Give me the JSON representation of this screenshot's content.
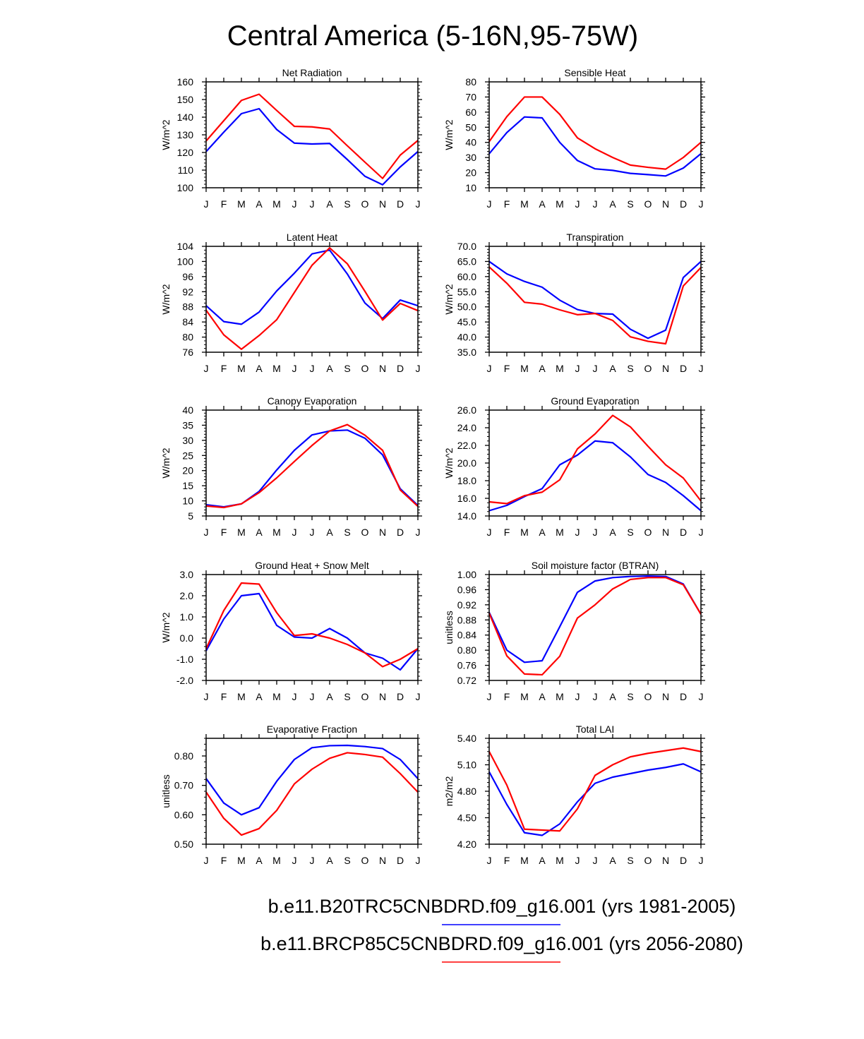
{
  "figure_title": "Central America (5-16N,95-75W)",
  "month_labels": [
    "J",
    "F",
    "M",
    "A",
    "M",
    "J",
    "J",
    "A",
    "S",
    "O",
    "N",
    "D",
    "J"
  ],
  "legend": [
    {
      "label": "b.e11.B20TRC5CNBDRD.f09_g16.001 (yrs 1981-2005)",
      "color": "#0000ff"
    },
    {
      "label": "b.e11.BRCP85C5CNBDRD.f09_g16.001 (yrs 2056-2080)",
      "color": "#ff0000"
    }
  ],
  "colors": {
    "historical": "#0000ff",
    "future": "#ff0000",
    "axis": "#000000"
  },
  "chart_data": [
    {
      "type": "line",
      "title": "Net Radiation",
      "ylabel": "W/m^2",
      "ylim": [
        100,
        160
      ],
      "yticks": [
        "100",
        "110",
        "120",
        "130",
        "140",
        "150",
        "160"
      ],
      "ytick_values": [
        100,
        110,
        120,
        130,
        140,
        150,
        160
      ],
      "minor_step": 2,
      "series": [
        {
          "name": "b.e11.B20TRC5CNBDRD.f09_g16.001 (yrs 1981-2005)",
          "color": "#0000ff",
          "values": [
            120.5,
            131.5,
            142.0,
            144.8,
            133.0,
            125.3,
            124.8,
            125.1,
            116.0,
            106.5,
            101.7,
            111.8,
            120.5
          ]
        },
        {
          "name": "b.e11.BRCP85C5CNBDRD.f09_g16.001 (yrs 2056-2080)",
          "color": "#ff0000",
          "values": [
            126.5,
            138.0,
            149.5,
            153.0,
            143.8,
            134.8,
            134.5,
            133.3,
            123.8,
            114.5,
            105.3,
            118.5,
            126.8
          ]
        }
      ]
    },
    {
      "type": "line",
      "title": "Sensible Heat",
      "ylabel": "W/m^2",
      "ylim": [
        10,
        80
      ],
      "yticks": [
        "10",
        "20",
        "30",
        "40",
        "50",
        "60",
        "70",
        "80"
      ],
      "ytick_values": [
        10,
        20,
        30,
        40,
        50,
        60,
        70,
        80
      ],
      "minor_step": 2,
      "series": [
        {
          "name": "b.e11.B20TRC5CNBDRD.f09_g16.001 (yrs 1981-2005)",
          "color": "#0000ff",
          "values": [
            32.5,
            46.5,
            56.8,
            56.2,
            40.0,
            28.0,
            22.5,
            21.5,
            19.5,
            18.7,
            17.8,
            23.0,
            32.5
          ]
        },
        {
          "name": "b.e11.BRCP85C5CNBDRD.f09_g16.001 (yrs 2056-2080)",
          "color": "#ff0000",
          "values": [
            40.5,
            57.0,
            70.0,
            70.0,
            58.5,
            43.0,
            35.8,
            30.0,
            25.0,
            23.5,
            22.3,
            30.0,
            40.0
          ]
        }
      ]
    },
    {
      "type": "line",
      "title": "Latent Heat",
      "ylabel": "W/m^2",
      "ylim": [
        76,
        104
      ],
      "yticks": [
        "76",
        "80",
        "84",
        "88",
        "92",
        "96",
        "100",
        "104"
      ],
      "ytick_values": [
        76,
        80,
        84,
        88,
        92,
        96,
        100,
        104
      ],
      "minor_step": 1,
      "series": [
        {
          "name": "b.e11.B20TRC5CNBDRD.f09_g16.001 (yrs 1981-2005)",
          "color": "#0000ff",
          "values": [
            88.3,
            84.1,
            83.4,
            86.6,
            92.2,
            96.9,
            102.0,
            103.0,
            96.7,
            89.0,
            84.9,
            89.8,
            88.3
          ]
        },
        {
          "name": "b.e11.BRCP85C5CNBDRD.f09_g16.001 (yrs 2056-2080)",
          "color": "#ff0000",
          "values": [
            87.1,
            80.6,
            76.8,
            80.4,
            84.6,
            91.8,
            99.0,
            103.6,
            99.4,
            92.1,
            84.5,
            88.9,
            87.0
          ]
        }
      ]
    },
    {
      "type": "line",
      "title": "Transpiration",
      "ylabel": "W/m^2",
      "ylim": [
        35,
        70
      ],
      "yticks": [
        "35.0",
        "40.0",
        "45.0",
        "50.0",
        "55.0",
        "60.0",
        "65.0",
        "70.0"
      ],
      "ytick_values": [
        35,
        40,
        45,
        50,
        55,
        60,
        65,
        70
      ],
      "minor_step": 1,
      "series": [
        {
          "name": "b.e11.B20TRC5CNBDRD.f09_g16.001 (yrs 1981-2005)",
          "color": "#0000ff",
          "values": [
            65.0,
            60.9,
            58.4,
            56.5,
            52.2,
            49.1,
            47.8,
            47.6,
            42.6,
            39.6,
            42.3,
            59.7,
            65.0
          ]
        },
        {
          "name": "b.e11.BRCP85C5CNBDRD.f09_g16.001 (yrs 2056-2080)",
          "color": "#ff0000",
          "values": [
            63.2,
            57.8,
            51.5,
            50.9,
            49.0,
            47.4,
            47.8,
            45.5,
            40.1,
            38.6,
            37.8,
            56.9,
            63.0
          ]
        }
      ]
    },
    {
      "type": "line",
      "title": "Canopy Evaporation",
      "ylabel": "W/m^2",
      "ylim": [
        5,
        40
      ],
      "yticks": [
        "5",
        "10",
        "15",
        "20",
        "25",
        "30",
        "35",
        "40"
      ],
      "ytick_values": [
        5,
        10,
        15,
        20,
        25,
        30,
        35,
        40
      ],
      "minor_step": 1,
      "series": [
        {
          "name": "b.e11.B20TRC5CNBDRD.f09_g16.001 (yrs 1981-2005)",
          "color": "#0000ff",
          "values": [
            8.7,
            8.0,
            9.0,
            13.1,
            20.2,
            26.7,
            31.8,
            33.1,
            33.4,
            30.7,
            25.2,
            14.0,
            8.5
          ]
        },
        {
          "name": "b.e11.BRCP85C5CNBDRD.f09_g16.001 (yrs 2056-2080)",
          "color": "#ff0000",
          "values": [
            8.3,
            7.8,
            9.0,
            12.7,
            17.6,
            23.0,
            28.3,
            33.1,
            35.2,
            31.7,
            26.7,
            13.6,
            8.2
          ]
        }
      ]
    },
    {
      "type": "line",
      "title": "Ground Evaporation",
      "ylabel": "W/m^2",
      "ylim": [
        14,
        26
      ],
      "yticks": [
        "14.0",
        "16.0",
        "18.0",
        "20.0",
        "22.0",
        "24.0",
        "26.0"
      ],
      "ytick_values": [
        14,
        16,
        18,
        20,
        22,
        24,
        26
      ],
      "minor_step": 0.5,
      "series": [
        {
          "name": "b.e11.B20TRC5CNBDRD.f09_g16.001 (yrs 1981-2005)",
          "color": "#0000ff",
          "values": [
            14.6,
            15.2,
            16.2,
            17.1,
            19.8,
            20.9,
            22.5,
            22.3,
            20.7,
            18.7,
            17.8,
            16.3,
            14.6
          ]
        },
        {
          "name": "b.e11.BRCP85C5CNBDRD.f09_g16.001 (yrs 2056-2080)",
          "color": "#ff0000",
          "values": [
            15.6,
            15.4,
            16.3,
            16.7,
            18.1,
            21.6,
            23.3,
            25.4,
            24.1,
            21.9,
            19.8,
            18.3,
            15.7
          ]
        }
      ]
    },
    {
      "type": "line",
      "title": "Ground Heat + Snow Melt",
      "ylabel": "W/m^2",
      "ylim": [
        -2,
        3
      ],
      "yticks": [
        "-2.0",
        "-1.0",
        "0.0",
        "1.0",
        "2.0",
        "3.0"
      ],
      "ytick_values": [
        -2,
        -1,
        0,
        1,
        2,
        3
      ],
      "minor_step": 0.2,
      "series": [
        {
          "name": "b.e11.B20TRC5CNBDRD.f09_g16.001 (yrs 1981-2005)",
          "color": "#0000ff",
          "values": [
            -0.6,
            0.9,
            2.0,
            2.1,
            0.6,
            0.05,
            0.0,
            0.45,
            0.0,
            -0.7,
            -0.95,
            -1.5,
            -0.5
          ]
        },
        {
          "name": "b.e11.BRCP85C5CNBDRD.f09_g16.001 (yrs 2056-2080)",
          "color": "#ff0000",
          "values": [
            -0.5,
            1.3,
            2.6,
            2.55,
            1.2,
            0.12,
            0.2,
            0.0,
            -0.3,
            -0.7,
            -1.35,
            -1.0,
            -0.5
          ]
        }
      ]
    },
    {
      "type": "line",
      "title": "Soil moisture factor (BTRAN)",
      "ylabel": "unitless",
      "ylim": [
        0.72,
        1.0
      ],
      "yticks": [
        "0.72",
        "0.76",
        "0.80",
        "0.84",
        "0.88",
        "0.92",
        "0.96",
        "1.00"
      ],
      "ytick_values": [
        0.72,
        0.76,
        0.8,
        0.84,
        0.88,
        0.92,
        0.96,
        1.0
      ],
      "minor_step": 0.01,
      "series": [
        {
          "name": "b.e11.B20TRC5CNBDRD.f09_g16.001 (yrs 1981-2005)",
          "color": "#0000ff",
          "values": [
            0.9,
            0.8,
            0.768,
            0.772,
            0.862,
            0.953,
            0.983,
            0.992,
            0.995,
            0.996,
            0.995,
            0.975,
            0.895
          ]
        },
        {
          "name": "b.e11.BRCP85C5CNBDRD.f09_g16.001 (yrs 2056-2080)",
          "color": "#ff0000",
          "values": [
            0.898,
            0.785,
            0.737,
            0.735,
            0.784,
            0.885,
            0.92,
            0.962,
            0.987,
            0.992,
            0.992,
            0.973,
            0.895
          ]
        }
      ]
    },
    {
      "type": "line",
      "title": "Evaporative Fraction",
      "ylabel": "unitless",
      "ylim": [
        0.5,
        0.86
      ],
      "yticks": [
        "0.50",
        "0.60",
        "0.70",
        "0.80"
      ],
      "ytick_values": [
        0.5,
        0.6,
        0.7,
        0.8
      ],
      "minor_step": 0.02,
      "series": [
        {
          "name": "b.e11.B20TRC5CNBDRD.f09_g16.001 (yrs 1981-2005)",
          "color": "#0000ff",
          "values": [
            0.723,
            0.64,
            0.6,
            0.624,
            0.714,
            0.788,
            0.828,
            0.835,
            0.836,
            0.832,
            0.825,
            0.788,
            0.723
          ]
        },
        {
          "name": "b.e11.BRCP85C5CNBDRD.f09_g16.001 (yrs 2056-2080)",
          "color": "#ff0000",
          "values": [
            0.677,
            0.588,
            0.531,
            0.553,
            0.615,
            0.705,
            0.755,
            0.792,
            0.811,
            0.805,
            0.796,
            0.74,
            0.677
          ]
        }
      ]
    },
    {
      "type": "line",
      "title": "Total LAI",
      "ylabel": "m2/m2",
      "ylim": [
        4.2,
        5.4
      ],
      "yticks": [
        "4.20",
        "4.50",
        "4.80",
        "5.10",
        "5.40"
      ],
      "ytick_values": [
        4.2,
        4.5,
        4.8,
        5.1,
        5.4
      ],
      "minor_step": 0.05,
      "series": [
        {
          "name": "b.e11.B20TRC5CNBDRD.f09_g16.001 (yrs 1981-2005)",
          "color": "#0000ff",
          "values": [
            5.02,
            4.65,
            4.33,
            4.3,
            4.43,
            4.68,
            4.89,
            4.96,
            5.0,
            5.04,
            5.07,
            5.11,
            5.02
          ]
        },
        {
          "name": "b.e11.BRCP85C5CNBDRD.f09_g16.001 (yrs 2056-2080)",
          "color": "#ff0000",
          "values": [
            5.25,
            4.87,
            4.37,
            4.36,
            4.35,
            4.6,
            4.98,
            5.1,
            5.19,
            5.23,
            5.26,
            5.29,
            5.25
          ]
        }
      ]
    }
  ]
}
